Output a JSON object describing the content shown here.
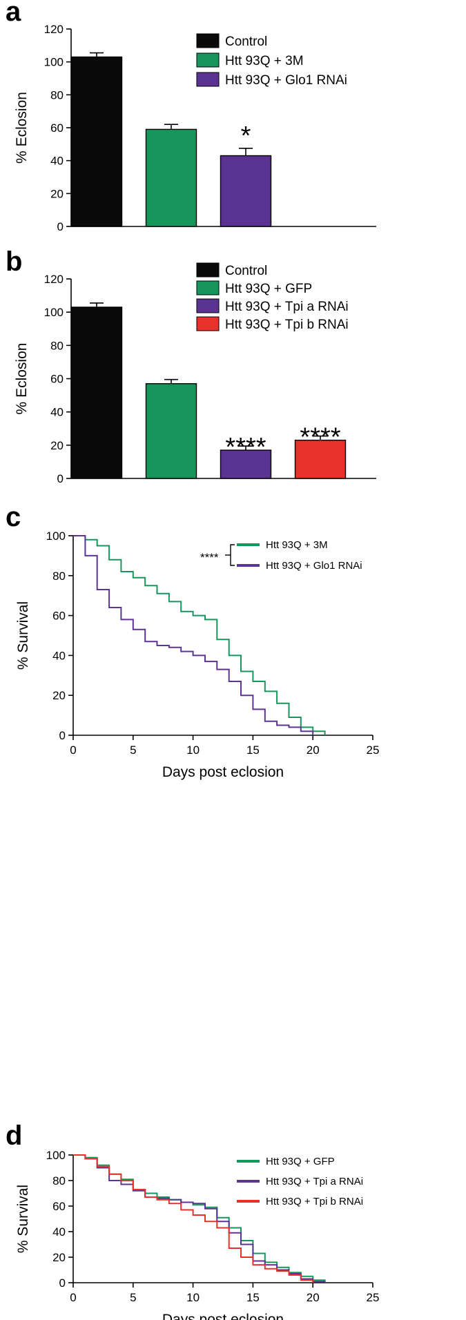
{
  "colors": {
    "black": "#0a0a0a",
    "green": "#16965a",
    "purple": "#5b3393",
    "red": "#e8312a"
  },
  "chart_data": [
    {
      "panel": "a",
      "type": "bar",
      "ylabel": "% Eclosion",
      "xlabel": "",
      "ylim": [
        0,
        120
      ],
      "yticks": [
        0,
        20,
        40,
        60,
        80,
        100,
        120
      ],
      "categories": [
        "Control",
        "Htt 93Q + 3M",
        "Htt 93Q + Glo1 RNAi"
      ],
      "values": [
        103,
        59,
        43
      ],
      "errors": [
        2.5,
        3,
        4.5
      ],
      "significance": [
        "",
        "",
        "*"
      ],
      "bar_colors": [
        "black",
        "green",
        "purple"
      ],
      "legend": [
        {
          "label": "Control",
          "color": "black"
        },
        {
          "label": "Htt 93Q + 3M",
          "color": "green"
        },
        {
          "label": "Htt 93Q + Glo1 RNAi",
          "color": "purple"
        }
      ]
    },
    {
      "panel": "b",
      "type": "bar",
      "ylabel": "% Eclosion",
      "xlabel": "",
      "ylim": [
        0,
        120
      ],
      "yticks": [
        0,
        20,
        40,
        60,
        80,
        100,
        120
      ],
      "categories": [
        "Control",
        "Htt 93Q + GFP",
        "Htt 93Q + Tpi a RNAi",
        "Htt 93Q + Tpi b RNAi"
      ],
      "values": [
        103,
        57,
        17,
        23
      ],
      "errors": [
        2.5,
        2.5,
        2.5,
        2.5
      ],
      "significance": [
        "",
        "",
        "****",
        "****"
      ],
      "bar_colors": [
        "black",
        "green",
        "purple",
        "red"
      ],
      "legend": [
        {
          "label": "Control",
          "color": "black"
        },
        {
          "label": "Htt 93Q + GFP",
          "color": "green"
        },
        {
          "label": "Htt 93Q + Tpi a RNAi",
          "color": "purple"
        },
        {
          "label": "Htt 93Q + Tpi b RNAi",
          "color": "red"
        }
      ]
    },
    {
      "panel": "c",
      "type": "line",
      "step": true,
      "ylabel": "% Survival",
      "xlabel": "Days post eclosion",
      "xlim": [
        0,
        25
      ],
      "ylim": [
        0,
        100
      ],
      "xticks": [
        0,
        5,
        10,
        15,
        20,
        25
      ],
      "yticks": [
        0,
        20,
        40,
        60,
        80,
        100
      ],
      "significance": "****",
      "series": [
        {
          "name": "Htt 93Q + 3M",
          "color": "green",
          "points": [
            [
              0,
              100
            ],
            [
              1,
              100
            ],
            [
              1,
              98
            ],
            [
              2,
              98
            ],
            [
              2,
              95
            ],
            [
              3,
              95
            ],
            [
              3,
              88
            ],
            [
              4,
              88
            ],
            [
              4,
              82
            ],
            [
              5,
              82
            ],
            [
              5,
              79
            ],
            [
              6,
              79
            ],
            [
              6,
              75
            ],
            [
              7,
              75
            ],
            [
              7,
              71
            ],
            [
              8,
              71
            ],
            [
              8,
              67
            ],
            [
              9,
              67
            ],
            [
              9,
              62
            ],
            [
              10,
              62
            ],
            [
              10,
              60
            ],
            [
              11,
              60
            ],
            [
              11,
              58
            ],
            [
              12,
              58
            ],
            [
              12,
              48
            ],
            [
              13,
              48
            ],
            [
              13,
              40
            ],
            [
              14,
              40
            ],
            [
              14,
              32
            ],
            [
              15,
              32
            ],
            [
              15,
              27
            ],
            [
              16,
              27
            ],
            [
              16,
              22
            ],
            [
              17,
              22
            ],
            [
              17,
              16
            ],
            [
              18,
              16
            ],
            [
              18,
              9
            ],
            [
              19,
              9
            ],
            [
              19,
              4
            ],
            [
              20,
              4
            ],
            [
              20,
              2
            ],
            [
              21,
              2
            ],
            [
              21,
              0
            ]
          ]
        },
        {
          "name": "Htt 93Q + Glo1 RNAi",
          "color": "purple",
          "points": [
            [
              0,
              100
            ],
            [
              1,
              100
            ],
            [
              1,
              90
            ],
            [
              2,
              90
            ],
            [
              2,
              73
            ],
            [
              3,
              73
            ],
            [
              3,
              64
            ],
            [
              4,
              64
            ],
            [
              4,
              58
            ],
            [
              5,
              58
            ],
            [
              5,
              53
            ],
            [
              6,
              53
            ],
            [
              6,
              47
            ],
            [
              7,
              47
            ],
            [
              7,
              45
            ],
            [
              8,
              45
            ],
            [
              8,
              44
            ],
            [
              9,
              44
            ],
            [
              9,
              42
            ],
            [
              10,
              42
            ],
            [
              10,
              40
            ],
            [
              11,
              40
            ],
            [
              11,
              37
            ],
            [
              12,
              37
            ],
            [
              12,
              33
            ],
            [
              13,
              33
            ],
            [
              13,
              27
            ],
            [
              14,
              27
            ],
            [
              14,
              20
            ],
            [
              15,
              20
            ],
            [
              15,
              13
            ],
            [
              16,
              13
            ],
            [
              16,
              7
            ],
            [
              17,
              7
            ],
            [
              17,
              5
            ],
            [
              18,
              5
            ],
            [
              18,
              4
            ],
            [
              19,
              4
            ],
            [
              19,
              2
            ],
            [
              20,
              2
            ],
            [
              20,
              0
            ]
          ]
        }
      ]
    },
    {
      "panel": "d",
      "type": "line",
      "step": true,
      "ylabel": "% Survival",
      "xlabel": "Days post eclosion",
      "xlim": [
        0,
        25
      ],
      "ylim": [
        0,
        100
      ],
      "xticks": [
        0,
        5,
        10,
        15,
        20,
        25
      ],
      "yticks": [
        0,
        20,
        40,
        60,
        80,
        100
      ],
      "series": [
        {
          "name": "Htt 93Q + GFP",
          "color": "green",
          "points": [
            [
              0,
              100
            ],
            [
              1,
              100
            ],
            [
              1,
              98
            ],
            [
              2,
              98
            ],
            [
              2,
              92
            ],
            [
              3,
              92
            ],
            [
              3,
              85
            ],
            [
              4,
              85
            ],
            [
              4,
              81
            ],
            [
              5,
              81
            ],
            [
              5,
              73
            ],
            [
              6,
              73
            ],
            [
              6,
              70
            ],
            [
              7,
              70
            ],
            [
              7,
              67
            ],
            [
              8,
              67
            ],
            [
              8,
              65
            ],
            [
              9,
              65
            ],
            [
              9,
              63
            ],
            [
              10,
              63
            ],
            [
              10,
              61
            ],
            [
              11,
              61
            ],
            [
              11,
              59
            ],
            [
              12,
              59
            ],
            [
              12,
              51
            ],
            [
              13,
              51
            ],
            [
              13,
              43
            ],
            [
              14,
              43
            ],
            [
              14,
              33
            ],
            [
              15,
              33
            ],
            [
              15,
              23
            ],
            [
              16,
              23
            ],
            [
              16,
              16
            ],
            [
              17,
              16
            ],
            [
              17,
              12
            ],
            [
              18,
              12
            ],
            [
              18,
              8
            ],
            [
              19,
              8
            ],
            [
              19,
              5
            ],
            [
              20,
              5
            ],
            [
              20,
              2
            ],
            [
              21,
              2
            ],
            [
              21,
              0
            ]
          ]
        },
        {
          "name": "Htt 93Q + Tpi a RNAi",
          "color": "purple",
          "points": [
            [
              0,
              100
            ],
            [
              1,
              100
            ],
            [
              1,
              97
            ],
            [
              2,
              97
            ],
            [
              2,
              90
            ],
            [
              3,
              90
            ],
            [
              3,
              80
            ],
            [
              4,
              80
            ],
            [
              4,
              77
            ],
            [
              5,
              77
            ],
            [
              5,
              72
            ],
            [
              6,
              72
            ],
            [
              6,
              67
            ],
            [
              7,
              67
            ],
            [
              7,
              66
            ],
            [
              8,
              66
            ],
            [
              8,
              65
            ],
            [
              9,
              65
            ],
            [
              9,
              63
            ],
            [
              10,
              63
            ],
            [
              10,
              62
            ],
            [
              11,
              62
            ],
            [
              11,
              58
            ],
            [
              12,
              58
            ],
            [
              12,
              48
            ],
            [
              13,
              48
            ],
            [
              13,
              39
            ],
            [
              14,
              39
            ],
            [
              14,
              30
            ],
            [
              15,
              30
            ],
            [
              15,
              17
            ],
            [
              16,
              17
            ],
            [
              16,
              14
            ],
            [
              17,
              14
            ],
            [
              17,
              10
            ],
            [
              18,
              10
            ],
            [
              18,
              7
            ],
            [
              19,
              7
            ],
            [
              19,
              3
            ],
            [
              20,
              3
            ],
            [
              20,
              1
            ],
            [
              21,
              1
            ],
            [
              21,
              0
            ]
          ]
        },
        {
          "name": "Htt 93Q + Tpi b RNAi",
          "color": "red",
          "points": [
            [
              0,
              100
            ],
            [
              1,
              100
            ],
            [
              1,
              97
            ],
            [
              2,
              97
            ],
            [
              2,
              91
            ],
            [
              3,
              91
            ],
            [
              3,
              85
            ],
            [
              4,
              85
            ],
            [
              4,
              80
            ],
            [
              5,
              80
            ],
            [
              5,
              73
            ],
            [
              6,
              73
            ],
            [
              6,
              67
            ],
            [
              7,
              67
            ],
            [
              7,
              65
            ],
            [
              8,
              65
            ],
            [
              8,
              62
            ],
            [
              9,
              62
            ],
            [
              9,
              57
            ],
            [
              10,
              57
            ],
            [
              10,
              53
            ],
            [
              11,
              53
            ],
            [
              11,
              48
            ],
            [
              12,
              48
            ],
            [
              12,
              43
            ],
            [
              13,
              43
            ],
            [
              13,
              27
            ],
            [
              14,
              27
            ],
            [
              14,
              20
            ],
            [
              15,
              20
            ],
            [
              15,
              14
            ],
            [
              16,
              14
            ],
            [
              16,
              11
            ],
            [
              17,
              11
            ],
            [
              17,
              9
            ],
            [
              18,
              9
            ],
            [
              18,
              6
            ],
            [
              19,
              6
            ],
            [
              19,
              2
            ],
            [
              20,
              2
            ],
            [
              20,
              0
            ]
          ]
        }
      ]
    }
  ]
}
